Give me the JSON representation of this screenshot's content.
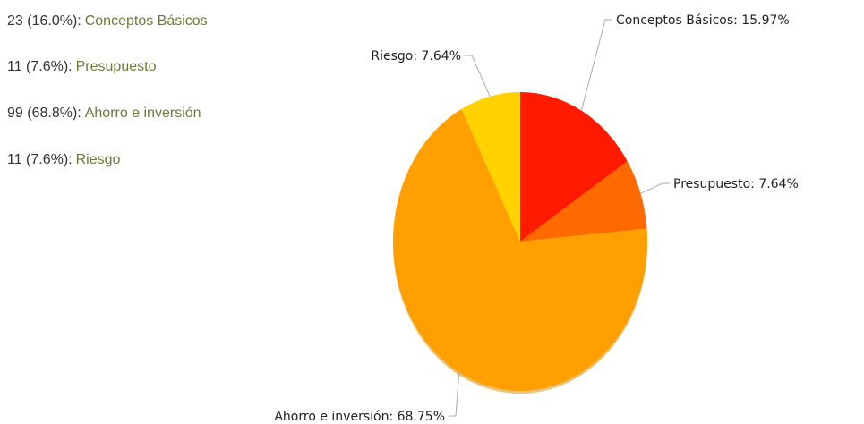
{
  "chart_data": {
    "type": "pie",
    "categories": [
      "Conceptos Básicos",
      "Presupuesto",
      "Ahorro e inversión",
      "Riesgo"
    ],
    "values": [
      15.97,
      7.64,
      68.75,
      7.64
    ],
    "value_labels": [
      "Conceptos Básicos: 15.97%",
      "Presupuesto: 7.64%",
      "Ahorro e inversión: 68.75%",
      "Riesgo: 7.64%"
    ],
    "legend_labels": [
      "23 (16.0%):",
      "11 (7.6%):",
      "99 (68.8%):",
      "11 (7.6%):"
    ],
    "colors": [
      "#ff1a00",
      "#ff6a00",
      "#ffa000",
      "#ffd200"
    ]
  }
}
